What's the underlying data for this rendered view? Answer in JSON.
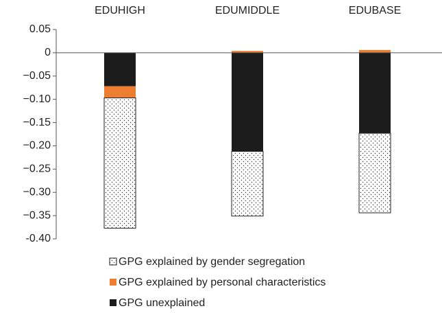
{
  "chart_data": {
    "type": "stacked_bar",
    "categories": [
      "EDUHIGH",
      "EDUMIDDLE",
      "EDUBASE"
    ],
    "series": [
      {
        "name": "GPG explained by gender segregation",
        "color": "#ffffff",
        "pattern": "dots",
        "values": [
          -0.28,
          -0.139,
          -0.171
        ]
      },
      {
        "name": "GPG explained by personal characteristics",
        "color": "#ed7d31",
        "values": [
          -0.025,
          0.004,
          0.006
        ]
      },
      {
        "name": "GPG unexplained",
        "color": "#1c1c1c",
        "values": [
          -0.072,
          -0.212,
          -0.173
        ]
      }
    ],
    "ylim": [
      -0.4,
      0.05
    ],
    "yticks": [
      0.05,
      0,
      {
        "value": -0.05,
        "label": "−0.05"
      },
      {
        "value": -0.1,
        "label": "−0.10"
      },
      {
        "value": -0.15,
        "label": "−0.15"
      },
      {
        "value": -0.2,
        "label": "−0.20"
      },
      {
        "value": -0.25,
        "label": "−0.25"
      },
      {
        "value": -0.3,
        "label": "−0.30"
      },
      {
        "value": -0.35,
        "label": "−0.35"
      },
      {
        "value": -0.4,
        "label": "-0.40"
      }
    ],
    "legend": "bottom"
  }
}
